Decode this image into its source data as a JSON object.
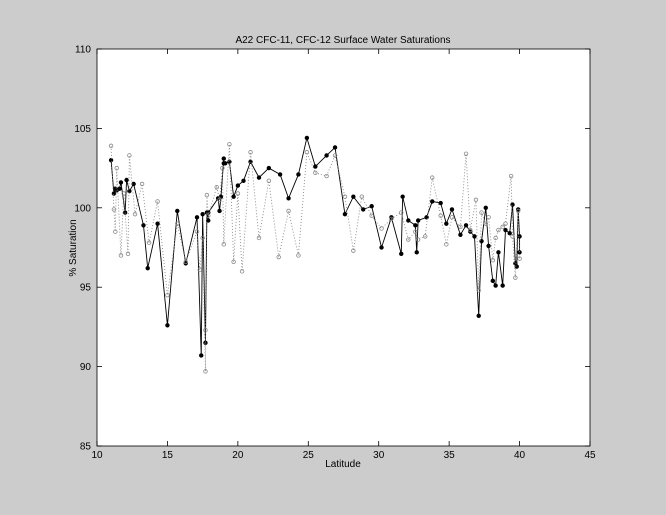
{
  "chart_data": {
    "type": "line",
    "title": "A22 CFC-11, CFC-12 Surface Water Saturations",
    "xlabel": "Latitude",
    "ylabel": "% Saturation",
    "xlim": [
      10,
      45
    ],
    "xticks": [
      10,
      15,
      20,
      25,
      30,
      35,
      40,
      45
    ],
    "ylim": [
      85,
      110
    ],
    "yticks": [
      85,
      90,
      95,
      100,
      105,
      110
    ],
    "series": [
      {
        "color": "#000000",
        "line": "solid",
        "marker": "filled",
        "x": [
          11.0,
          11.2,
          11.3,
          11.4,
          11.6,
          11.7,
          12.0,
          12.1,
          12.3,
          12.6,
          13.3,
          13.6,
          14.3,
          15.0,
          15.7,
          16.3,
          17.1,
          17.4,
          17.5,
          17.7,
          17.8,
          17.9,
          17.9,
          18.6,
          18.7,
          18.8,
          19.0,
          19.0,
          19.1,
          19.4,
          19.7,
          20.0,
          20.4,
          20.9,
          21.5,
          22.2,
          23.0,
          23.6,
          24.3,
          24.9,
          25.5,
          26.3,
          26.9,
          27.6,
          28.2,
          28.9,
          29.5,
          30.2,
          30.9,
          31.6,
          31.7,
          32.1,
          32.6,
          32.7,
          32.8,
          33.4,
          33.8,
          34.4,
          34.8,
          35.2,
          35.8,
          36.2,
          36.5,
          36.8,
          37.1,
          37.3,
          37.6,
          37.8,
          38.1,
          38.3,
          38.5,
          38.8,
          39.0,
          39.3,
          39.5,
          39.7,
          39.8,
          39.9,
          40.0,
          40.0
        ],
        "values": [
          103.0,
          100.9,
          101.2,
          101.1,
          101.2,
          101.6,
          99.7,
          101.75,
          101.05,
          101.5,
          98.9,
          96.2,
          99.0,
          92.6,
          99.8,
          96.5,
          99.4,
          90.7,
          99.6,
          91.5,
          99.7,
          99.2,
          99.7,
          100.6,
          99.8,
          100.7,
          103.1,
          102.8,
          102.8,
          102.9,
          100.7,
          101.4,
          101.7,
          102.9,
          101.9,
          102.5,
          102.1,
          100.6,
          102.1,
          104.4,
          102.6,
          103.3,
          103.8,
          99.6,
          100.7,
          99.9,
          100.1,
          97.5,
          99.4,
          97.1,
          100.7,
          99.2,
          98.9,
          97.2,
          99.2,
          99.4,
          100.4,
          100.3,
          99.0,
          99.9,
          98.3,
          98.9,
          98.5,
          98.2,
          93.2,
          97.9,
          100.0,
          97.6,
          95.4,
          95.1,
          97.2,
          95.1,
          98.6,
          98.4,
          100.2,
          96.5,
          96.3,
          99.9,
          98.2,
          97.2
        ]
      },
      {
        "color": "#888888",
        "line": "dotted",
        "marker": "open",
        "x": [
          11.0,
          11.2,
          11.3,
          11.4,
          11.7,
          11.9,
          12.2,
          12.3,
          12.7,
          13.2,
          13.7,
          14.3,
          15.0,
          15.7,
          16.3,
          17.1,
          17.3,
          17.5,
          17.7,
          17.7,
          17.8,
          17.9,
          18.5,
          18.7,
          18.9,
          19.0,
          19.4,
          19.7,
          20.0,
          20.3,
          20.9,
          21.5,
          22.2,
          22.9,
          23.6,
          24.3,
          24.9,
          25.5,
          26.3,
          26.9,
          27.6,
          28.2,
          28.8,
          29.5,
          30.2,
          30.9,
          31.6,
          32.1,
          32.6,
          32.8,
          33.3,
          33.8,
          34.4,
          34.8,
          35.2,
          35.8,
          36.2,
          36.5,
          36.9,
          37.1,
          37.3,
          37.6,
          37.8,
          38.1,
          38.3,
          38.5,
          38.8,
          39.0,
          39.4,
          39.5,
          39.7,
          39.9,
          40.0
        ],
        "values": [
          103.9,
          99.9,
          98.5,
          102.5,
          97.0,
          100.9,
          97.1,
          103.3,
          99.6,
          101.5,
          97.8,
          100.4,
          94.5,
          99.0,
          96.6,
          98.5,
          96.1,
          98.1,
          89.7,
          92.3,
          100.8,
          99.5,
          101.3,
          100.5,
          102.5,
          97.7,
          104.0,
          96.6,
          100.9,
          96.0,
          103.5,
          98.1,
          101.7,
          96.9,
          99.8,
          97.0,
          103.5,
          102.2,
          102.0,
          103.3,
          100.7,
          97.3,
          100.7,
          99.5,
          98.7,
          99.3,
          99.7,
          98.0,
          98.5,
          98.0,
          98.2,
          101.9,
          99.5,
          97.7,
          99.4,
          98.8,
          103.4,
          98.6,
          100.5,
          94.8,
          99.7,
          99.0,
          99.4,
          96.7,
          98.1,
          98.6,
          98.8,
          99.0,
          102.0,
          98.2,
          95.6,
          99.8,
          96.8
        ]
      }
    ]
  }
}
